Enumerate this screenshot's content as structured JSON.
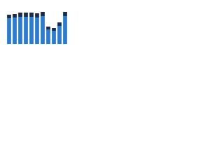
{
  "chart_data": {
    "type": "stacked-bar",
    "categories": [
      null,
      null,
      null,
      null,
      null,
      null,
      null,
      null,
      null,
      null,
      null
    ],
    "series": [
      {
        "color": "#2a7bd4",
        "values": [
          37,
          38,
          39,
          39,
          39,
          38,
          40,
          21,
          19,
          26,
          40
        ]
      },
      {
        "color": "#1b2b48",
        "values": [
          5,
          5,
          6,
          6,
          6,
          6,
          6,
          4,
          4,
          5,
          6
        ]
      }
    ],
    "ylim": [
      0,
      52
    ]
  }
}
